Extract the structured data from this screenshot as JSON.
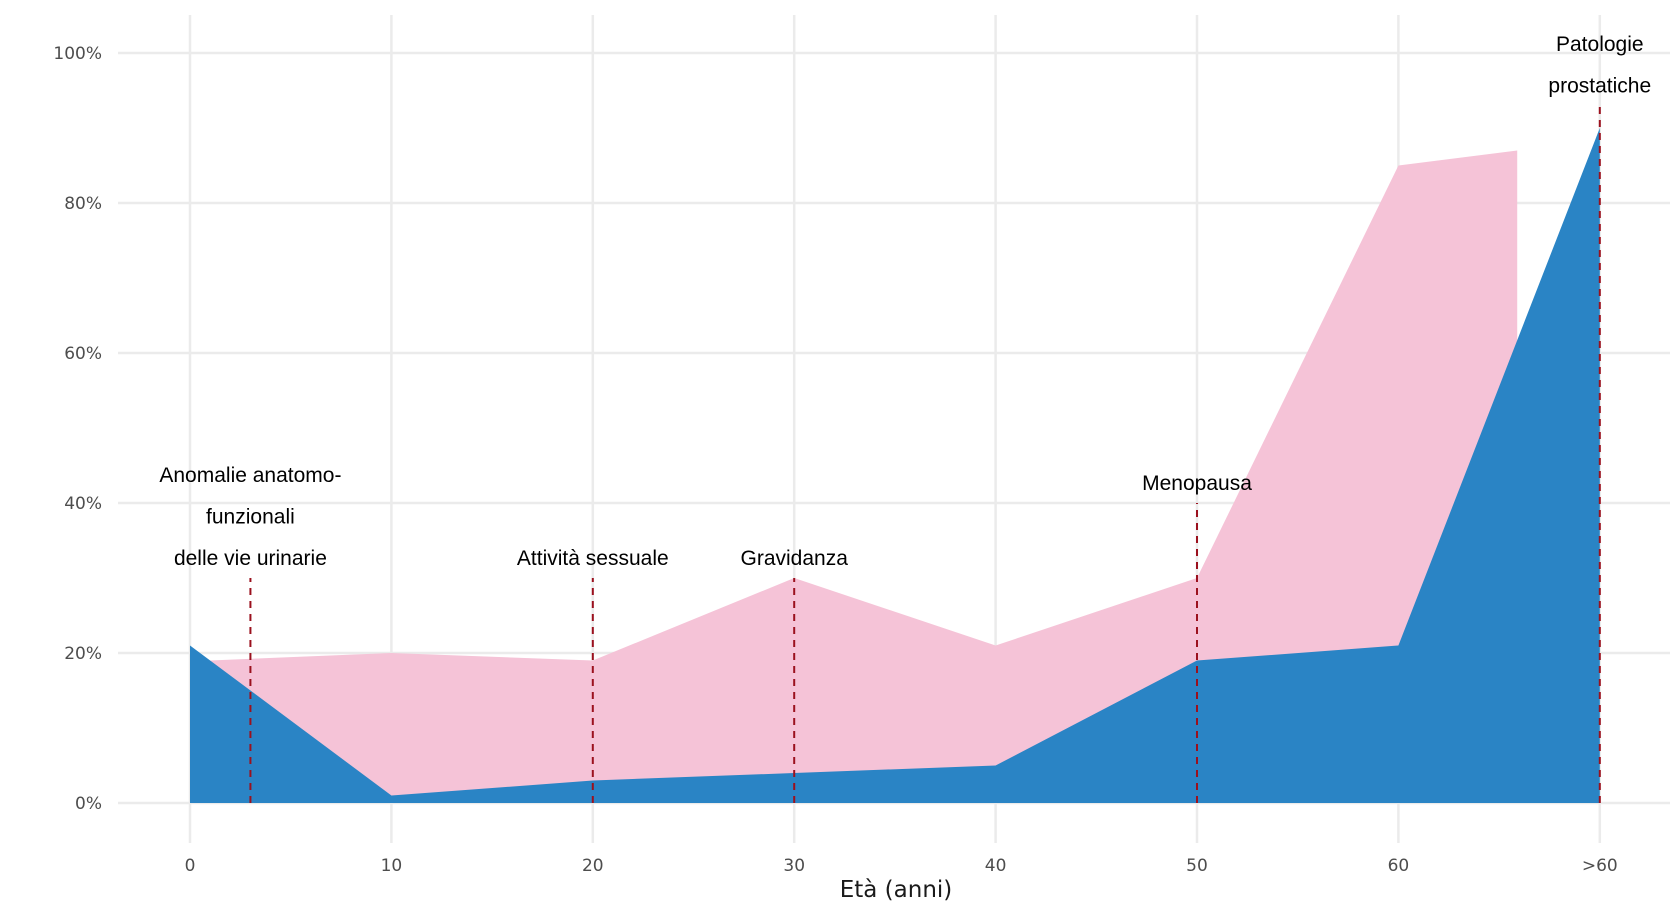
{
  "chart_data": {
    "type": "area",
    "title": "",
    "xlabel": "Età (anni)",
    "ylabel": "",
    "x_ticks": [
      "0",
      "10",
      "20",
      "30",
      "40",
      "50",
      "60",
      ">60"
    ],
    "y_ticks": [
      "0%",
      "20%",
      "40%",
      "60%",
      "80%",
      "100%"
    ],
    "ylim": [
      0,
      100
    ],
    "grid": true,
    "legend": "none",
    "series": [
      {
        "color": "#f5c3d7",
        "points": [
          [
            1,
            19
          ],
          [
            10,
            20
          ],
          [
            20,
            19
          ],
          [
            30,
            30
          ],
          [
            40,
            21
          ],
          [
            50,
            30
          ],
          [
            60,
            85
          ],
          [
            65.9,
            87
          ]
        ]
      },
      {
        "color": "#2a84c5",
        "points": [
          [
            0,
            21
          ],
          [
            10,
            1
          ],
          [
            20,
            3
          ],
          [
            30,
            4
          ],
          [
            40,
            5
          ],
          [
            50,
            19
          ],
          [
            60,
            21
          ],
          [
            70,
            90
          ]
        ]
      }
    ],
    "annotations": [
      {
        "x": 3,
        "line_top": 30,
        "lines": [
          "Anomalie anatomo-",
          "funzionali",
          "delle vie urinarie"
        ]
      },
      {
        "x": 20,
        "line_top": 30,
        "lines": [
          "Attività sessuale"
        ]
      },
      {
        "x": 30,
        "line_top": 30,
        "lines": [
          "Gravidanza"
        ]
      },
      {
        "x": 50,
        "line_top": 40,
        "lines": [
          "Menopausa"
        ]
      },
      {
        "x": 70,
        "line_top": 93,
        "lines": [
          "Patologie",
          "prostatiche"
        ]
      }
    ],
    "reference_line_color": "#9b111e"
  }
}
